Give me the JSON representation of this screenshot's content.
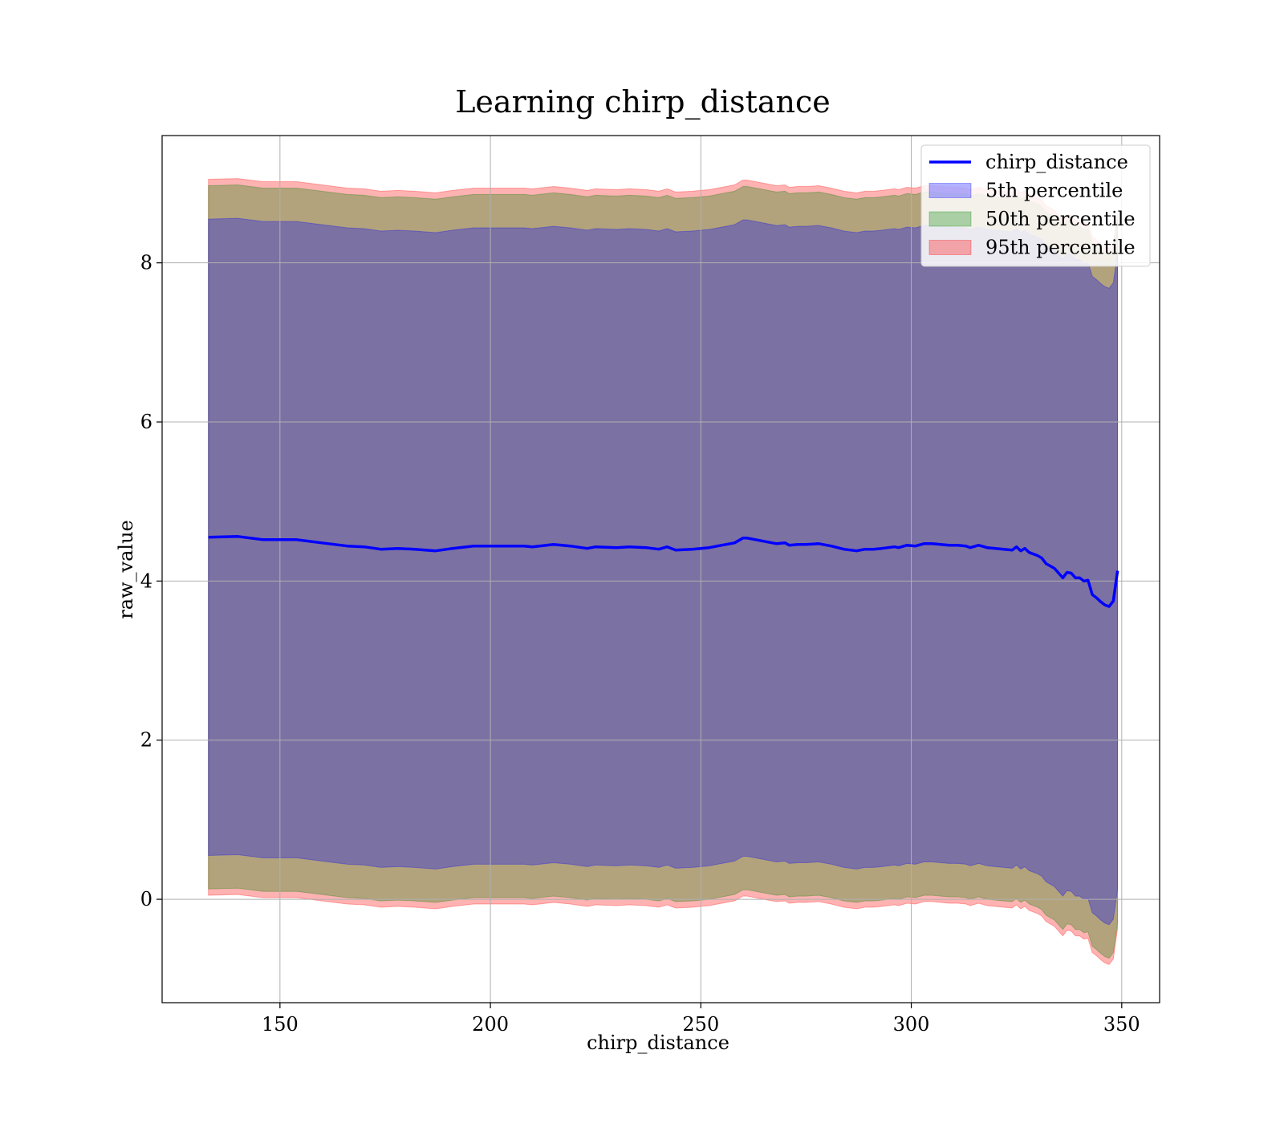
{
  "chart_data": {
    "type": "area",
    "title": "Learning chirp_distance",
    "xlabel": "chirp_distance",
    "ylabel": "raw_value",
    "xlim": [
      122,
      359
    ],
    "ylim": [
      -1.3,
      9.6
    ],
    "xticks": [
      150,
      200,
      250,
      300,
      350
    ],
    "yticks": [
      0,
      2,
      4,
      6,
      8
    ],
    "grid": true,
    "legend_position": "top-right",
    "x": [
      133,
      140,
      146,
      154,
      160,
      166,
      170,
      174,
      178,
      182,
      187,
      191,
      196,
      200,
      204,
      208,
      210,
      215,
      219,
      223,
      225,
      230,
      233,
      237,
      240,
      242,
      244,
      248,
      252,
      255,
      258,
      260,
      261,
      264,
      266,
      268,
      270,
      271,
      273,
      275,
      278,
      281,
      284,
      287,
      289,
      291,
      293,
      296,
      297,
      299,
      301,
      303,
      305,
      307,
      309,
      311,
      313,
      314,
      316,
      318,
      320,
      322,
      324,
      325,
      326,
      327,
      328,
      330,
      331,
      332,
      334,
      336,
      337,
      338,
      339,
      340,
      341,
      342,
      343,
      344,
      345,
      346,
      347,
      348,
      349
    ],
    "series": [
      {
        "name": "chirp_distance",
        "kind": "line",
        "color": "#0000ff",
        "values": [
          4.55,
          4.56,
          4.52,
          4.52,
          4.48,
          4.44,
          4.43,
          4.4,
          4.41,
          4.4,
          4.38,
          4.41,
          4.44,
          4.44,
          4.44,
          4.44,
          4.43,
          4.46,
          4.44,
          4.41,
          4.43,
          4.42,
          4.43,
          4.42,
          4.4,
          4.43,
          4.39,
          4.4,
          4.42,
          4.45,
          4.48,
          4.54,
          4.54,
          4.51,
          4.49,
          4.47,
          4.48,
          4.45,
          4.46,
          4.46,
          4.47,
          4.44,
          4.4,
          4.38,
          4.4,
          4.4,
          4.41,
          4.43,
          4.42,
          4.45,
          4.44,
          4.47,
          4.47,
          4.46,
          4.45,
          4.45,
          4.44,
          4.42,
          4.45,
          4.42,
          4.41,
          4.4,
          4.39,
          4.43,
          4.38,
          4.41,
          4.36,
          4.32,
          4.29,
          4.22,
          4.16,
          4.04,
          4.11,
          4.1,
          4.04,
          4.04,
          4.0,
          4.01,
          3.83,
          3.79,
          3.74,
          3.7,
          3.68,
          3.75,
          4.13
        ]
      },
      {
        "name": "5th percentile",
        "kind": "band",
        "color": "#0000ff",
        "offset": 4.0
      },
      {
        "name": "50th percentile",
        "kind": "band",
        "color": "#008000",
        "offset": 4.42
      },
      {
        "name": "95th percentile",
        "kind": "band",
        "color": "#ff0000",
        "offset": 4.5
      }
    ]
  }
}
